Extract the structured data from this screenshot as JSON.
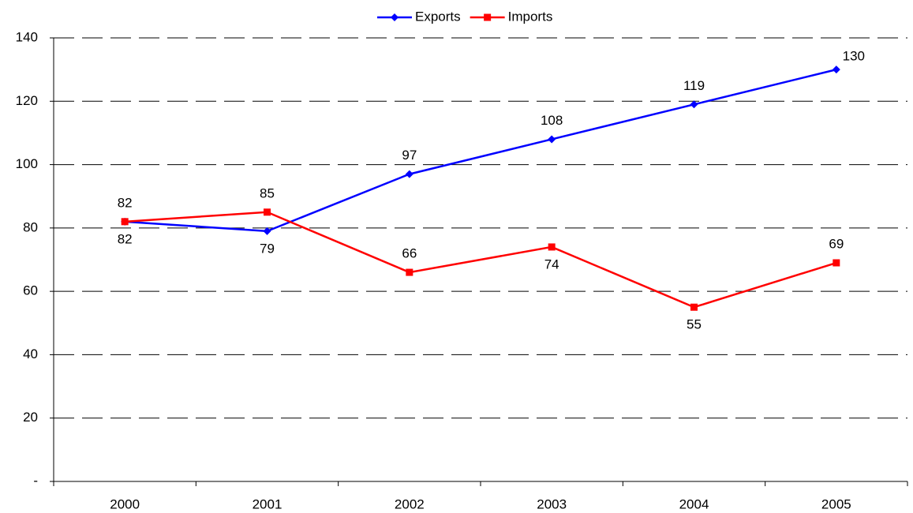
{
  "chart_data": {
    "type": "line",
    "categories": [
      "2000",
      "2001",
      "2002",
      "2003",
      "2004",
      "2005"
    ],
    "series": [
      {
        "name": "Exports",
        "color": "#0000ff",
        "marker": "diamond",
        "values": [
          82,
          79,
          97,
          108,
          119,
          130
        ]
      },
      {
        "name": "Imports",
        "color": "#ff0000",
        "marker": "square",
        "values": [
          82,
          85,
          66,
          74,
          55,
          69
        ]
      }
    ],
    "ylim": [
      0,
      140
    ],
    "yticks": [
      {
        "value": 0,
        "label": "-"
      },
      20,
      40,
      60,
      80,
      100,
      120,
      140
    ],
    "grid": true,
    "legend": "top"
  }
}
